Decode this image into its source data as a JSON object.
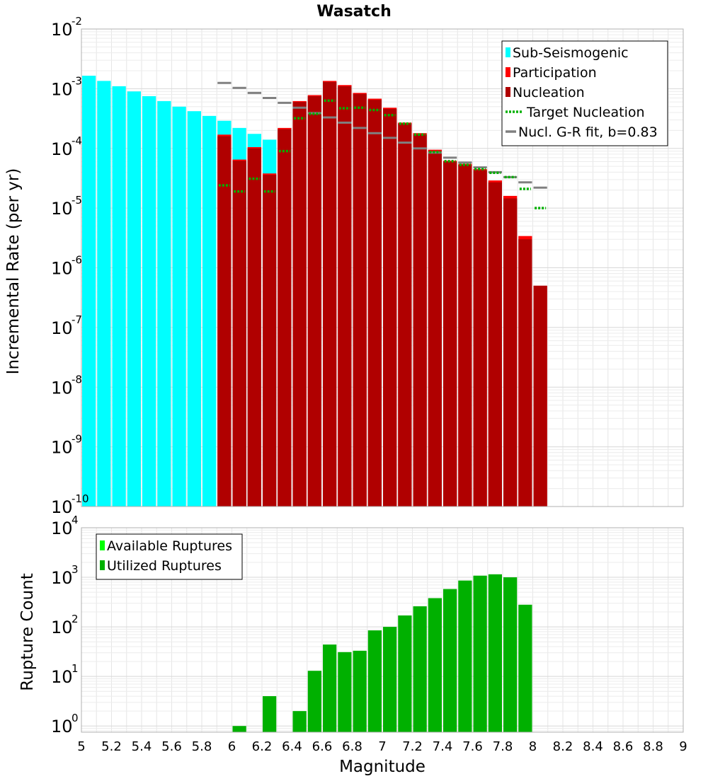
{
  "chart_data": [
    {
      "type": "bar",
      "title": "Wasatch",
      "ylabel": "Incremental Rate (per yr)",
      "yscale": "log",
      "ylim": [
        1e-10,
        0.01
      ],
      "xlim": [
        5,
        9
      ],
      "grid": true,
      "legend_position": "top-right",
      "y_ticks": [
        {
          "base": "10",
          "exp": "-10"
        },
        {
          "base": "10",
          "exp": "-9"
        },
        {
          "base": "10",
          "exp": "-8"
        },
        {
          "base": "10",
          "exp": "-7"
        },
        {
          "base": "10",
          "exp": "-6"
        },
        {
          "base": "10",
          "exp": "-5"
        },
        {
          "base": "10",
          "exp": "-4"
        },
        {
          "base": "10",
          "exp": "-3"
        },
        {
          "base": "10",
          "exp": "-2"
        }
      ],
      "legend": [
        {
          "label": "Sub-Seismogenic",
          "kind": "bar",
          "color": "#00ffff"
        },
        {
          "label": "Participation",
          "kind": "bar",
          "color": "#ff0000"
        },
        {
          "label": "Nucleation",
          "kind": "bar",
          "color": "#b00000"
        },
        {
          "label": "Target Nucleation",
          "kind": "dotted",
          "color": "#00b000"
        },
        {
          "label": "Nucl. G-R fit, b=0.83",
          "kind": "line",
          "color": "#808080"
        }
      ],
      "series": [
        {
          "name": "Sub-Seismogenic",
          "color": "#00ffff",
          "x": [
            5.05,
            5.15,
            5.25,
            5.35,
            5.45,
            5.55,
            5.65,
            5.75,
            5.85,
            5.95,
            6.05,
            6.15,
            6.25
          ],
          "values": [
            0.00165,
            0.00135,
            0.0011,
            0.0009,
            0.00075,
            0.00062,
            0.0005,
            0.00042,
            0.00035,
            0.00029,
            0.00022,
            0.000175,
            0.00014
          ]
        },
        {
          "name": "Participation",
          "color": "#ff0000",
          "x": [
            5.95,
            6.05,
            6.15,
            6.25,
            6.35,
            6.45,
            6.55,
            6.65,
            6.75,
            6.85,
            6.95,
            7.05,
            7.15,
            7.25,
            7.35,
            7.45,
            7.55,
            7.65,
            7.75,
            7.85,
            7.95,
            8.05
          ],
          "values": [
            0.00017,
            6.5e-05,
            0.000105,
            3.8e-05,
            0.00022,
            0.00062,
            0.00078,
            0.00135,
            0.00115,
            0.00085,
            0.00068,
            0.00048,
            0.00027,
            0.00018,
            9.5e-05,
            6.2e-05,
            5.5e-05,
            4.5e-05,
            2.9e-05,
            1.6e-05,
            3.4e-06,
            5e-07
          ]
        },
        {
          "name": "Nucleation",
          "color": "#b00000",
          "x": [
            5.95,
            6.05,
            6.15,
            6.25,
            6.35,
            6.45,
            6.55,
            6.65,
            6.75,
            6.85,
            6.95,
            7.05,
            7.15,
            7.25,
            7.35,
            7.45,
            7.55,
            7.65,
            7.75,
            7.85,
            7.95,
            8.05
          ],
          "values": [
            0.00016,
            6.2e-05,
            0.0001,
            3.6e-05,
            0.00021,
            0.0006,
            0.00075,
            0.0013,
            0.0011,
            0.00082,
            0.00065,
            0.00046,
            0.00026,
            0.00017,
            9e-05,
            6e-05,
            5.3e-05,
            4.3e-05,
            2.7e-05,
            1.45e-05,
            3e-06,
            5e-07
          ]
        },
        {
          "name": "Target Nucleation",
          "color": "#00b000",
          "x": [
            5.95,
            6.05,
            6.15,
            6.25,
            6.35,
            6.45,
            6.55,
            6.65,
            6.75,
            6.85,
            6.95,
            7.05,
            7.15,
            7.25,
            7.35,
            7.45,
            7.55,
            7.65,
            7.75,
            7.85,
            7.95,
            8.05
          ],
          "values": [
            2.4e-05,
            1.9e-05,
            3.1e-05,
            1.9e-05,
            9e-05,
            0.00032,
            0.00038,
            0.00063,
            0.00047,
            0.00048,
            0.00044,
            0.00036,
            0.00026,
            0.00017,
            8.7e-05,
            6.1e-05,
            5.3e-05,
            4.5e-05,
            3.9e-05,
            3.3e-05,
            2.1e-05,
            1e-05
          ]
        },
        {
          "name": "Nucl. G-R fit, b=0.83",
          "color": "#808080",
          "x": [
            5.95,
            6.05,
            6.15,
            6.25,
            6.35,
            6.45,
            6.55,
            6.65,
            6.75,
            6.85,
            6.95,
            7.05,
            7.15,
            7.25,
            7.35,
            7.45,
            7.55,
            7.65,
            7.75,
            7.85,
            7.95,
            8.05
          ],
          "values": [
            0.00125,
            0.00103,
            0.00085,
            0.0007,
            0.00058,
            0.00048,
            0.00039,
            0.00033,
            0.00027,
            0.00022,
            0.00018,
            0.00015,
            0.000125,
            0.0001,
            8.5e-05,
            7e-05,
            5.8e-05,
            4.8e-05,
            4e-05,
            3.3e-05,
            2.7e-05,
            2.2e-05
          ]
        }
      ]
    },
    {
      "type": "bar",
      "ylabel": "Rupture Count",
      "xlabel": "Magnitude",
      "yscale": "log",
      "ylim": [
        0.75,
        10000.0
      ],
      "xlim": [
        5,
        9
      ],
      "grid": true,
      "legend_position": "top-left",
      "x_ticks": [
        "5",
        "5.2",
        "5.4",
        "5.6",
        "5.8",
        "6",
        "6.2",
        "6.4",
        "6.6",
        "6.8",
        "7",
        "7.2",
        "7.4",
        "7.6",
        "7.8",
        "8",
        "8.2",
        "8.4",
        "8.6",
        "8.8",
        "9"
      ],
      "y_ticks": [
        {
          "base": "10",
          "exp": "0"
        },
        {
          "base": "10",
          "exp": "1"
        },
        {
          "base": "10",
          "exp": "2"
        },
        {
          "base": "10",
          "exp": "3"
        },
        {
          "base": "10",
          "exp": "4"
        }
      ],
      "legend": [
        {
          "label": "Available Ruptures",
          "kind": "bar",
          "color": "#00ff00"
        },
        {
          "label": "Utilized Ruptures",
          "kind": "bar",
          "color": "#00b000"
        }
      ],
      "series": [
        {
          "name": "Utilized Ruptures",
          "color": "#00b000",
          "x": [
            6.05,
            6.25,
            6.45,
            6.55,
            6.65,
            6.75,
            6.85,
            6.95,
            7.05,
            7.15,
            7.25,
            7.35,
            7.45,
            7.55,
            7.65,
            7.75,
            7.85,
            7.95
          ],
          "values": [
            1,
            4,
            2,
            13,
            44,
            31,
            33,
            85,
            100,
            170,
            260,
            380,
            580,
            860,
            1080,
            1150,
            1000,
            280
          ]
        }
      ]
    }
  ]
}
